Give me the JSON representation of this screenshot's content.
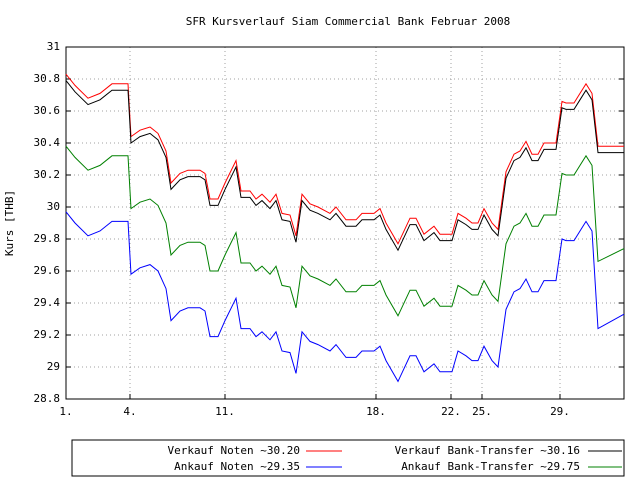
{
  "chart_data": {
    "type": "line",
    "title": "SFR Kursverlauf Siam Commercial Bank Februar 2008",
    "y_label": "Kurs [THB]",
    "grid": true,
    "legend": "bottom",
    "xlim": [
      0,
      558
    ],
    "xticks": [
      {
        "value": 0,
        "label": "1."
      },
      {
        "value": 64,
        "label": "4."
      },
      {
        "value": 159,
        "label": "11."
      },
      {
        "value": 310,
        "label": "18."
      },
      {
        "value": 385,
        "label": "22."
      },
      {
        "value": 416,
        "label": "25."
      },
      {
        "value": 494,
        "label": "29."
      }
    ],
    "ylim": [
      28.8,
      31
    ],
    "yticks": [
      28.8,
      29,
      29.2,
      29.4,
      29.6,
      29.8,
      30,
      30.2,
      30.4,
      30.6,
      30.8,
      31
    ],
    "x": [
      0,
      9,
      22,
      34,
      46,
      54,
      62,
      65,
      74,
      84,
      92,
      100,
      105,
      114,
      122,
      134,
      139,
      144,
      152,
      159,
      170,
      175,
      184,
      190,
      196,
      204,
      210,
      216,
      224,
      230,
      236,
      244,
      252,
      264,
      270,
      280,
      290,
      296,
      308,
      314,
      320,
      332,
      344,
      350,
      358,
      368,
      374,
      386,
      392,
      400,
      406,
      412,
      418,
      426,
      432,
      440,
      448,
      454,
      460,
      466,
      472,
      478,
      484,
      490,
      496,
      500,
      508,
      514,
      520,
      526,
      532,
      558
    ],
    "series": [
      {
        "name": "Verkauf Noten ~30.20",
        "color": "#ff0000",
        "values": [
          30.83,
          30.76,
          30.68,
          30.71,
          30.77,
          30.77,
          30.77,
          30.44,
          30.48,
          30.5,
          30.46,
          30.35,
          30.15,
          30.21,
          30.23,
          30.23,
          30.21,
          30.05,
          30.05,
          30.15,
          30.29,
          30.1,
          30.1,
          30.05,
          30.08,
          30.03,
          30.08,
          29.96,
          29.95,
          29.82,
          30.08,
          30.02,
          30.0,
          29.96,
          30.0,
          29.92,
          29.92,
          29.96,
          29.96,
          29.99,
          29.9,
          29.77,
          29.93,
          29.93,
          29.83,
          29.88,
          29.83,
          29.83,
          29.96,
          29.93,
          29.9,
          29.9,
          29.99,
          29.9,
          29.86,
          30.22,
          30.33,
          30.35,
          30.41,
          30.33,
          30.33,
          30.4,
          30.4,
          30.4,
          30.66,
          30.65,
          30.65,
          30.71,
          30.77,
          30.71,
          30.38,
          30.38
        ]
      },
      {
        "name": "Verkauf Bank-Transfer ~30.16",
        "color": "#000000",
        "values": [
          30.79,
          30.72,
          30.64,
          30.67,
          30.73,
          30.73,
          30.73,
          30.4,
          30.44,
          30.46,
          30.42,
          30.31,
          30.11,
          30.17,
          30.19,
          30.19,
          30.17,
          30.01,
          30.01,
          30.11,
          30.25,
          30.06,
          30.06,
          30.01,
          30.04,
          29.99,
          30.04,
          29.92,
          29.91,
          29.78,
          30.04,
          29.98,
          29.96,
          29.92,
          29.96,
          29.88,
          29.88,
          29.92,
          29.92,
          29.95,
          29.86,
          29.73,
          29.89,
          29.89,
          29.79,
          29.84,
          29.79,
          29.79,
          29.92,
          29.89,
          29.86,
          29.86,
          29.95,
          29.86,
          29.82,
          30.18,
          30.29,
          30.31,
          30.37,
          30.29,
          30.29,
          30.36,
          30.36,
          30.36,
          30.62,
          30.61,
          30.61,
          30.67,
          30.73,
          30.67,
          30.34,
          30.34
        ]
      },
      {
        "name": "Ankauf Noten ~29.35",
        "color": "#0000ff",
        "values": [
          29.97,
          29.9,
          29.82,
          29.85,
          29.91,
          29.91,
          29.91,
          29.58,
          29.62,
          29.64,
          29.6,
          29.49,
          29.29,
          29.35,
          29.37,
          29.37,
          29.35,
          29.19,
          29.19,
          29.29,
          29.43,
          29.24,
          29.24,
          29.19,
          29.22,
          29.17,
          29.22,
          29.1,
          29.09,
          28.96,
          29.22,
          29.16,
          29.14,
          29.1,
          29.14,
          29.06,
          29.06,
          29.1,
          29.1,
          29.13,
          29.04,
          28.91,
          29.07,
          29.07,
          28.97,
          29.02,
          28.97,
          28.97,
          29.1,
          29.07,
          29.04,
          29.04,
          29.13,
          29.04,
          29.0,
          29.36,
          29.47,
          29.49,
          29.55,
          29.47,
          29.47,
          29.54,
          29.54,
          29.54,
          29.8,
          29.79,
          29.79,
          29.85,
          29.91,
          29.85,
          29.24,
          29.33
        ]
      },
      {
        "name": "Ankauf Bank-Transfer ~29.75",
        "color": "#008000",
        "values": [
          30.38,
          30.31,
          30.23,
          30.26,
          30.32,
          30.32,
          30.32,
          29.99,
          30.03,
          30.05,
          30.01,
          29.9,
          29.7,
          29.76,
          29.78,
          29.78,
          29.76,
          29.6,
          29.6,
          29.7,
          29.84,
          29.65,
          29.65,
          29.6,
          29.63,
          29.58,
          29.63,
          29.51,
          29.5,
          29.37,
          29.63,
          29.57,
          29.55,
          29.51,
          29.55,
          29.47,
          29.47,
          29.51,
          29.51,
          29.54,
          29.45,
          29.32,
          29.48,
          29.48,
          29.38,
          29.43,
          29.38,
          29.38,
          29.51,
          29.48,
          29.45,
          29.45,
          29.54,
          29.45,
          29.41,
          29.77,
          29.88,
          29.9,
          29.96,
          29.88,
          29.88,
          29.95,
          29.95,
          29.95,
          30.21,
          30.2,
          30.2,
          30.26,
          30.32,
          30.26,
          29.66,
          29.74
        ]
      }
    ]
  }
}
